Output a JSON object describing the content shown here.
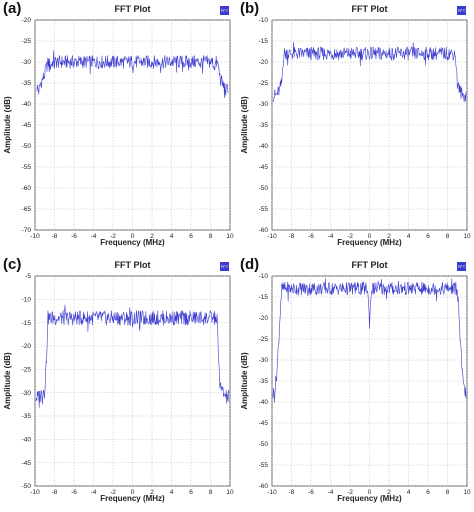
{
  "chart_data": [
    {
      "panel_label": "(a)",
      "type": "line",
      "title": "FFT Plot",
      "xlabel": "Frequency (MHz)",
      "ylabel": "Amplitude (dB)",
      "xlim": [
        -10,
        10
      ],
      "ylim": [
        -70,
        -20
      ],
      "xticks": [
        -10,
        -8,
        -6,
        -4,
        -2,
        0,
        2,
        4,
        6,
        8,
        10
      ],
      "yticks": [
        -70,
        -65,
        -60,
        -55,
        -50,
        -45,
        -40,
        -35,
        -30,
        -25,
        -20
      ],
      "grid": true,
      "legend": "top-right",
      "legend_label": "FFT",
      "series_color": "#3b3bd0",
      "series": [
        {
          "x": [
            -9.8,
            -9.6,
            -9.4,
            -9.2,
            -9.0,
            -8.8,
            -8.6,
            -8.4,
            -8.2,
            -8.0,
            -7.0,
            -6.0,
            -5.0,
            -4.0,
            -3.0,
            -2.0,
            -1.0,
            0.0,
            1.0,
            2.0,
            3.0,
            4.0,
            5.0,
            6.0,
            7.0,
            8.0,
            8.2,
            8.4,
            8.6,
            8.8,
            9.0,
            9.2,
            9.4,
            9.6,
            9.8
          ],
          "y": [
            -36,
            -37,
            -35,
            -34,
            -33,
            -31,
            -30,
            -31,
            -30,
            -30,
            -30,
            -30,
            -30,
            -30,
            -30,
            -30,
            -30,
            -30,
            -30,
            -30,
            -30,
            -30,
            -30,
            -30,
            -30,
            -30,
            -30,
            -31,
            -30,
            -31,
            -34,
            -35,
            -36,
            -37,
            -36
          ]
        }
      ]
    },
    {
      "panel_label": "(b)",
      "type": "line",
      "title": "FFT Plot",
      "xlabel": "Frequency (MHz)",
      "ylabel": "Amplitude (dB)",
      "xlim": [
        -10,
        10
      ],
      "ylim": [
        -60,
        -10
      ],
      "xticks": [
        -10,
        -8,
        -6,
        -4,
        -2,
        0,
        2,
        4,
        6,
        8,
        10
      ],
      "yticks": [
        -60,
        -55,
        -50,
        -45,
        -40,
        -35,
        -30,
        -25,
        -20,
        -15,
        -10
      ],
      "grid": true,
      "legend": "top-right",
      "legend_label": "FFT",
      "series_color": "#3b3bd0",
      "series": [
        {
          "x": [
            -9.9,
            -9.6,
            -9.3,
            -9.0,
            -8.9,
            -8.8,
            -8.5,
            -8.0,
            -7.0,
            -6.0,
            -5.0,
            -4.0,
            -3.0,
            -2.0,
            -1.0,
            0.0,
            1.0,
            2.0,
            3.0,
            4.0,
            5.0,
            6.0,
            7.0,
            8.0,
            8.5,
            8.8,
            8.9,
            9.0,
            9.3,
            9.6,
            9.9
          ],
          "y": [
            -28,
            -28,
            -27,
            -25,
            -21,
            -18,
            -18,
            -18,
            -18,
            -18,
            -18,
            -18,
            -18,
            -18,
            -18,
            -18,
            -18,
            -18,
            -18,
            -18,
            -18,
            -18,
            -18,
            -18,
            -18,
            -18,
            -21,
            -25,
            -27,
            -28,
            -28
          ]
        }
      ]
    },
    {
      "panel_label": "(c)",
      "type": "line",
      "title": "FFT Plot",
      "xlabel": "Frequency (MHz)",
      "ylabel": "Amplitude (dB)",
      "xlim": [
        -10,
        10
      ],
      "ylim": [
        -50,
        -5
      ],
      "xticks": [
        -10,
        -8,
        -6,
        -4,
        -2,
        0,
        2,
        4,
        6,
        8,
        10
      ],
      "yticks": [
        -50,
        -45,
        -40,
        -35,
        -30,
        -25,
        -20,
        -15,
        -10,
        -5
      ],
      "grid": true,
      "legend": "top-right",
      "legend_label": "FFT",
      "series_color": "#3b3bd0",
      "series": [
        {
          "x": [
            -9.9,
            -9.6,
            -9.3,
            -9.0,
            -8.8,
            -8.7,
            -8.5,
            -8.0,
            -7.0,
            -6.0,
            -5.0,
            -4.0,
            -3.0,
            -2.0,
            -1.0,
            0.0,
            1.0,
            2.0,
            3.0,
            4.0,
            5.0,
            6.0,
            7.0,
            8.0,
            8.5,
            8.7,
            8.8,
            9.0,
            9.3,
            9.6,
            9.9
          ],
          "y": [
            -31,
            -31,
            -30,
            -29,
            -22,
            -14,
            -14,
            -14,
            -14,
            -14,
            -14,
            -14,
            -14,
            -14,
            -14,
            -14,
            -14,
            -14,
            -14,
            -14,
            -14,
            -14,
            -14,
            -14,
            -14,
            -14,
            -22,
            -29,
            -30,
            -31,
            -31
          ]
        }
      ]
    },
    {
      "panel_label": "(d)",
      "type": "line",
      "title": "FFT Plot",
      "xlabel": "Frequency (MHz)",
      "ylabel": "Amplitude (dB)",
      "xlim": [
        -10,
        10
      ],
      "ylim": [
        -60,
        -10
      ],
      "xticks": [
        -10,
        -8,
        -6,
        -4,
        -2,
        0,
        2,
        4,
        6,
        8,
        10
      ],
      "yticks": [
        -60,
        -55,
        -50,
        -45,
        -40,
        -35,
        -30,
        -25,
        -20,
        -15,
        -10
      ],
      "grid": true,
      "legend": "top-right",
      "legend_label": "FFT",
      "series_color": "#3b3bd0",
      "series": [
        {
          "x": [
            -9.9,
            -9.7,
            -9.5,
            -9.3,
            -9.1,
            -9.0,
            -8.5,
            -8.0,
            -7.0,
            -6.0,
            -5.0,
            -4.0,
            -3.0,
            -2.0,
            -1.0,
            -0.2,
            0.0,
            0.2,
            1.0,
            2.0,
            3.0,
            4.0,
            5.0,
            6.0,
            7.0,
            8.0,
            8.5,
            9.0,
            9.1,
            9.3,
            9.5,
            9.7,
            9.9
          ],
          "y": [
            -38,
            -37,
            -33,
            -25,
            -16,
            -13,
            -13,
            -13,
            -13,
            -13,
            -13,
            -13,
            -13,
            -13,
            -13,
            -13,
            -21,
            -13,
            -13,
            -13,
            -13,
            -13,
            -13,
            -13,
            -13,
            -13,
            -13,
            -13,
            -16,
            -25,
            -33,
            -37,
            -38
          ]
        }
      ]
    }
  ]
}
